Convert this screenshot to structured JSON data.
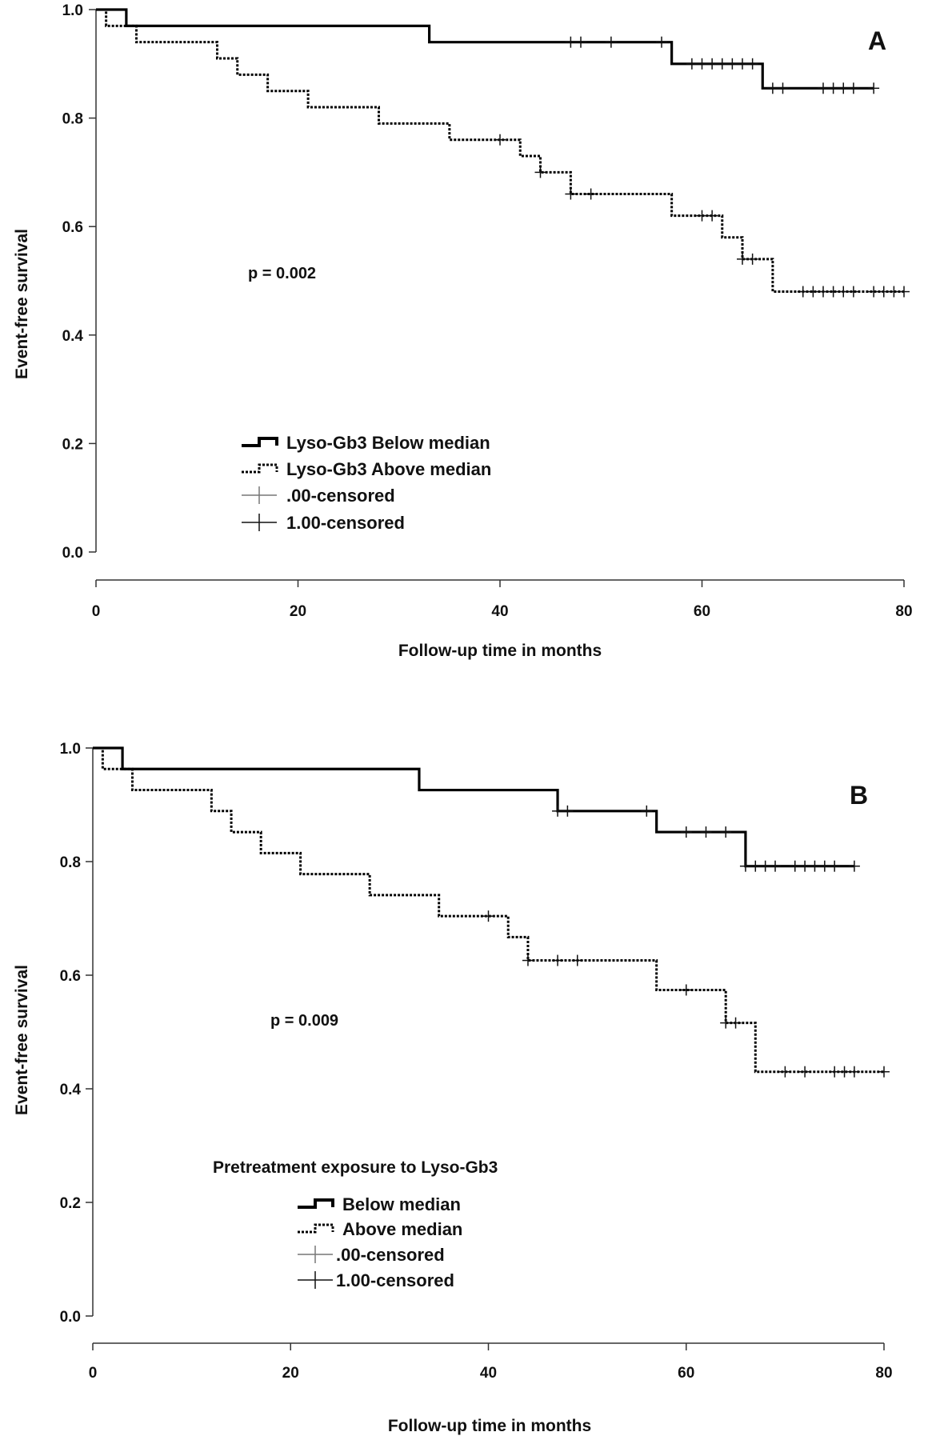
{
  "chart_data": [
    {
      "type": "line",
      "panel_label": "A",
      "p_value": "p = 0.002",
      "xlabel": "Follow-up time in months",
      "ylabel": "Event-free survival",
      "xlim": [
        0,
        80
      ],
      "ylim": [
        0.0,
        1.0
      ],
      "x_ticks": [
        "0",
        "20",
        "40",
        "60",
        "80"
      ],
      "y_ticks": [
        "0.0",
        "0.2",
        "0.4",
        "0.6",
        "0.8",
        "1.0"
      ],
      "grid": false,
      "legend_title": "",
      "legend_position": "bottom-left",
      "legend": [
        "Lyso-Gb3 Below median",
        "Lyso-Gb3 Above median",
        ".00-censored",
        "1.00-censored"
      ],
      "series": [
        {
          "name": "Lyso-Gb3 Below median",
          "style": "solid",
          "steps": [
            [
              0,
              1.0
            ],
            [
              3,
              0.97
            ],
            [
              33,
              0.94
            ],
            [
              57,
              0.9
            ],
            [
              66,
              0.855
            ],
            [
              77,
              0.855
            ]
          ],
          "censored": [
            47,
            48,
            51,
            56,
            59,
            60,
            61,
            62,
            63,
            64,
            65,
            67,
            68,
            72,
            73,
            74,
            75,
            77
          ]
        },
        {
          "name": "Lyso-Gb3 Above median",
          "style": "dotted",
          "steps": [
            [
              0,
              1.0
            ],
            [
              1,
              0.97
            ],
            [
              4,
              0.94
            ],
            [
              12,
              0.91
            ],
            [
              14,
              0.88
            ],
            [
              17,
              0.85
            ],
            [
              21,
              0.82
            ],
            [
              28,
              0.79
            ],
            [
              35,
              0.76
            ],
            [
              42,
              0.73
            ],
            [
              44,
              0.7
            ],
            [
              47,
              0.66
            ],
            [
              57,
              0.62
            ],
            [
              62,
              0.58
            ],
            [
              64,
              0.54
            ],
            [
              67,
              0.48
            ],
            [
              80,
              0.48
            ]
          ],
          "censored": [
            40,
            44,
            47,
            49,
            60,
            61,
            64,
            65,
            70,
            71,
            72,
            73,
            74,
            75,
            77,
            78,
            79,
            80
          ]
        }
      ]
    },
    {
      "type": "line",
      "panel_label": "B",
      "p_value": "p = 0.009",
      "xlabel": "Follow-up time in months",
      "ylabel": "Event-free survival",
      "xlim": [
        0,
        80
      ],
      "ylim": [
        0.0,
        1.0
      ],
      "x_ticks": [
        "0",
        "20",
        "40",
        "60",
        "80"
      ],
      "y_ticks": [
        "0.0",
        "0.2",
        "0.4",
        "0.6",
        "0.8",
        "1.0"
      ],
      "grid": false,
      "legend_title": "Pretreatment exposure to Lyso-Gb3",
      "legend_position": "bottom-left",
      "legend": [
        "Below median",
        "Above median",
        ".00-censored",
        "1.00-censored"
      ],
      "series": [
        {
          "name": "Below median",
          "style": "solid",
          "steps": [
            [
              0,
              1.0
            ],
            [
              3,
              0.963
            ],
            [
              33,
              0.926
            ],
            [
              47,
              0.889
            ],
            [
              57,
              0.852
            ],
            [
              66,
              0.792
            ],
            [
              77,
              0.792
            ]
          ],
          "censored": [
            47,
            48,
            56,
            60,
            62,
            64,
            66,
            67,
            68,
            69,
            71,
            72,
            73,
            74,
            75,
            77
          ]
        },
        {
          "name": "Above median",
          "style": "dotted",
          "steps": [
            [
              0,
              1.0
            ],
            [
              1,
              0.963
            ],
            [
              4,
              0.926
            ],
            [
              12,
              0.889
            ],
            [
              14,
              0.852
            ],
            [
              17,
              0.815
            ],
            [
              21,
              0.778
            ],
            [
              28,
              0.741
            ],
            [
              35,
              0.704
            ],
            [
              42,
              0.667
            ],
            [
              44,
              0.626
            ],
            [
              57,
              0.574
            ],
            [
              64,
              0.516
            ],
            [
              67,
              0.43
            ],
            [
              80,
              0.43
            ]
          ],
          "censored": [
            40,
            44,
            47,
            49,
            60,
            64,
            65,
            70,
            72,
            75,
            76,
            77,
            80
          ]
        }
      ]
    }
  ]
}
